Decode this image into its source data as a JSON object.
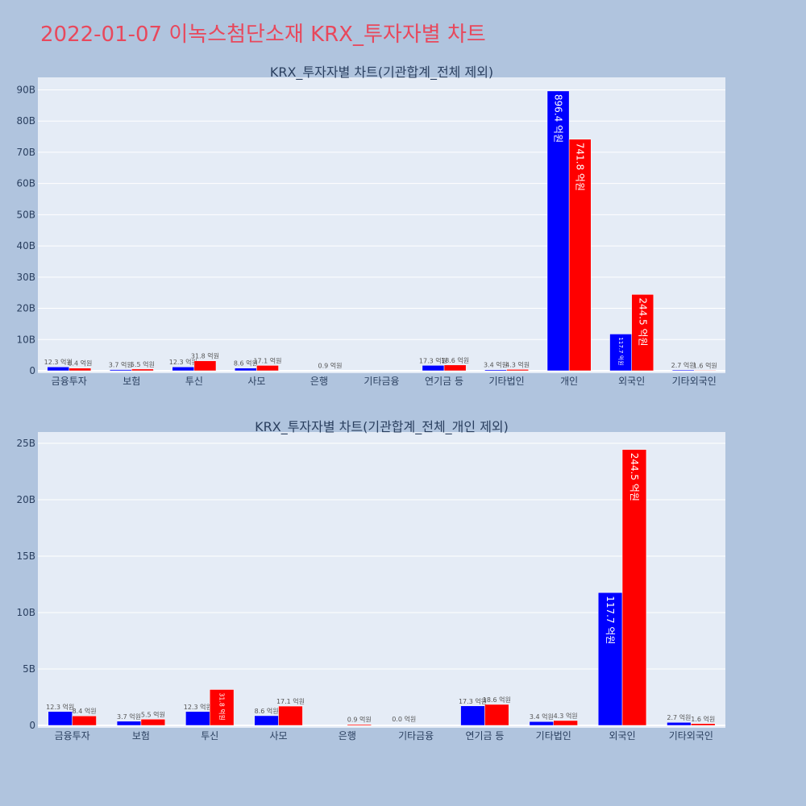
{
  "page": {
    "title": "2022-01-07 이녹스첨단소재 KRX_투자자별 차트"
  },
  "colors": {
    "background": "#b0c4de",
    "plot_background": "#e5ecf6",
    "series_a": "#0000ff",
    "series_b": "#ff0000",
    "title": "#e8485c"
  },
  "chart_data": [
    {
      "type": "bar",
      "title": "KRX_투자자별 차트(기관합계_전체 제외)",
      "categories": [
        "금융투자",
        "보험",
        "투신",
        "사모",
        "은행",
        "기타금융",
        "연기금 등",
        "기타법인",
        "개인",
        "외국인",
        "기타외국인"
      ],
      "series": [
        {
          "color": "#0000ff",
          "values": [
            1230000000,
            370000000,
            1230000000,
            860000000,
            null,
            null,
            1730000000,
            340000000,
            89640000000,
            11770000000,
            270000000
          ],
          "labels": [
            "12.3 억원",
            "3.7 억원",
            "12.3 억원",
            "8.6 억원",
            "",
            "",
            "17.3 억원",
            "3.4 억원",
            "896.4 억원",
            "117.7 억원",
            "2.7 억원"
          ]
        },
        {
          "color": "#ff0000",
          "values": [
            840000000,
            550000000,
            3180000000,
            1710000000,
            90000000,
            null,
            1860000000,
            430000000,
            74180000000,
            24450000000,
            160000000
          ],
          "labels": [
            "8.4 억원",
            "5.5 억원",
            "31.8 억원",
            "17.1 억원",
            "0.9 억원",
            "",
            "18.6 억원",
            "4.3 억원",
            "741.8 억원",
            "244.5 억원",
            "1.6 억원"
          ]
        }
      ],
      "ylim": [
        0,
        94000000000
      ],
      "yticks": [
        0,
        10000000000,
        20000000000,
        30000000000,
        40000000000,
        50000000000,
        60000000000,
        70000000000,
        80000000000,
        90000000000
      ],
      "ytick_labels": [
        "0",
        "10B",
        "20B",
        "30B",
        "40B",
        "50B",
        "60B",
        "70B",
        "80B",
        "90B"
      ],
      "grid": true
    },
    {
      "type": "bar",
      "title": "KRX_투자자별 차트(기관합계_전체_개인 제외)",
      "categories": [
        "금융투자",
        "보험",
        "투신",
        "사모",
        "은행",
        "기타금융",
        "연기금 등",
        "기타법인",
        "외국인",
        "기타외국인"
      ],
      "series": [
        {
          "color": "#0000ff",
          "values": [
            1230000000,
            370000000,
            1230000000,
            860000000,
            null,
            0,
            1730000000,
            340000000,
            11770000000,
            270000000
          ],
          "labels": [
            "12.3 억원",
            "3.7 억원",
            "12.3 억원",
            "8.6 억원",
            "",
            "0.0 억원",
            "17.3 억원",
            "3.4 억원",
            "117.7 억원",
            "2.7 억원"
          ]
        },
        {
          "color": "#ff0000",
          "values": [
            840000000,
            550000000,
            3180000000,
            1710000000,
            90000000,
            null,
            1860000000,
            430000000,
            24450000000,
            160000000
          ],
          "labels": [
            "8.4 억원",
            "5.5 억원",
            "31.8 억원",
            "17.1 억원",
            "0.9 억원",
            "",
            "18.6 억원",
            "4.3 억원",
            "244.5 억원",
            "1.6 억원"
          ]
        }
      ],
      "ylim": [
        0,
        26000000000
      ],
      "yticks": [
        0,
        5000000000,
        10000000000,
        15000000000,
        20000000000,
        25000000000
      ],
      "ytick_labels": [
        "0",
        "5B",
        "10B",
        "15B",
        "20B",
        "25B"
      ],
      "grid": true
    }
  ]
}
